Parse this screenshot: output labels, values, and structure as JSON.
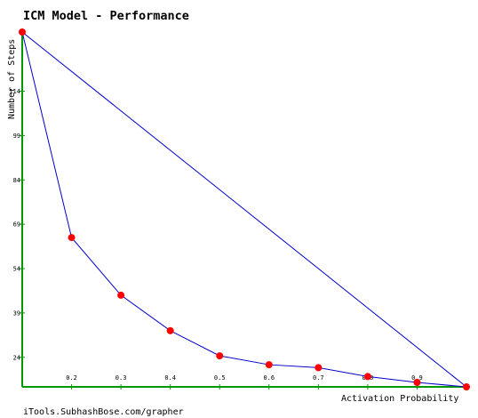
{
  "chart_data": {
    "type": "line",
    "title": "ICM Model - Performance",
    "xlabel": "Activation Probability",
    "ylabel": "Number of Steps",
    "footer": "iTools.SubhashBose.com/grapher",
    "x_ticks": [
      "0.2",
      "0.3",
      "0.4",
      "0.5",
      "0.6",
      "0.7",
      "0.8",
      "0.9"
    ],
    "y_ticks": [
      "24",
      "39",
      "54",
      "69",
      "84",
      "99",
      "114"
    ],
    "xlim": [
      0.1,
      1.0
    ],
    "ylim": [
      14,
      134
    ],
    "grid": false,
    "colors": {
      "axis": "#009900",
      "line": "#0000cc",
      "marker": "#ff0000"
    },
    "series": [
      {
        "x": [
          0.1,
          0.2,
          0.3,
          0.4,
          0.5,
          0.6,
          0.7,
          0.8,
          0.9,
          1.0
        ],
        "y": [
          134,
          64.5,
          45,
          33,
          24.5,
          21.5,
          20.5,
          17.5,
          15.5,
          14
        ]
      }
    ],
    "closing_line": {
      "from": [
        0.1,
        134
      ],
      "to": [
        1.0,
        14
      ]
    }
  }
}
